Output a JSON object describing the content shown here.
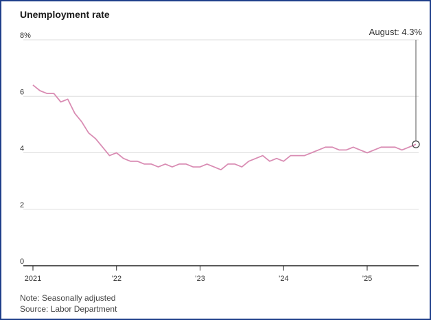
{
  "title": "Unemployment rate",
  "notes": {
    "note": "Note: Seasonally adjusted",
    "source": "Source: Labor Department"
  },
  "colors": {
    "line": "#d98cb3",
    "grid": "#dddddd",
    "axis": "#222222",
    "callout": "#555555",
    "frame": "#1f3f8a"
  },
  "chart_data": {
    "type": "line",
    "title": "Unemployment rate",
    "xlabel": "",
    "ylabel": "",
    "ylim": [
      0,
      8
    ],
    "yticks": [
      0,
      2,
      4,
      6,
      8
    ],
    "ytick_labels": [
      "0",
      "2",
      "4",
      "6",
      "8%"
    ],
    "xticks": [
      {
        "x": "2021-01",
        "label": "2021"
      },
      {
        "x": "2022-01",
        "label": "’22"
      },
      {
        "x": "2023-01",
        "label": "’23"
      },
      {
        "x": "2024-01",
        "label": "’24"
      },
      {
        "x": "2025-01",
        "label": "’25"
      }
    ],
    "grid": true,
    "annotation": {
      "x": "2025-08",
      "y": 4.3,
      "text": "August: 4.3%"
    },
    "series": [
      {
        "x": [
          "2021-01",
          "2021-02",
          "2021-03",
          "2021-04",
          "2021-05",
          "2021-06",
          "2021-07",
          "2021-08",
          "2021-09",
          "2021-10",
          "2021-11",
          "2021-12",
          "2022-01",
          "2022-02",
          "2022-03",
          "2022-04",
          "2022-05",
          "2022-06",
          "2022-07",
          "2022-08",
          "2022-09",
          "2022-10",
          "2022-11",
          "2022-12",
          "2023-01",
          "2023-02",
          "2023-03",
          "2023-04",
          "2023-05",
          "2023-06",
          "2023-07",
          "2023-08",
          "2023-09",
          "2023-10",
          "2023-11",
          "2023-12",
          "2024-01",
          "2024-02",
          "2024-03",
          "2024-04",
          "2024-05",
          "2024-06",
          "2024-07",
          "2024-08",
          "2024-09",
          "2024-10",
          "2024-11",
          "2024-12",
          "2025-01",
          "2025-02",
          "2025-03",
          "2025-04",
          "2025-05",
          "2025-06",
          "2025-07",
          "2025-08"
        ],
        "values": [
          6.4,
          6.2,
          6.1,
          6.1,
          5.8,
          5.9,
          5.4,
          5.1,
          4.7,
          4.5,
          4.2,
          3.9,
          4.0,
          3.8,
          3.7,
          3.7,
          3.6,
          3.6,
          3.5,
          3.6,
          3.5,
          3.6,
          3.6,
          3.5,
          3.5,
          3.6,
          3.5,
          3.4,
          3.6,
          3.6,
          3.5,
          3.7,
          3.8,
          3.9,
          3.7,
          3.8,
          3.7,
          3.9,
          3.9,
          3.9,
          4.0,
          4.1,
          4.2,
          4.2,
          4.1,
          4.1,
          4.2,
          4.1,
          4.0,
          4.1,
          4.2,
          4.2,
          4.2,
          4.1,
          4.2,
          4.3
        ]
      }
    ]
  }
}
